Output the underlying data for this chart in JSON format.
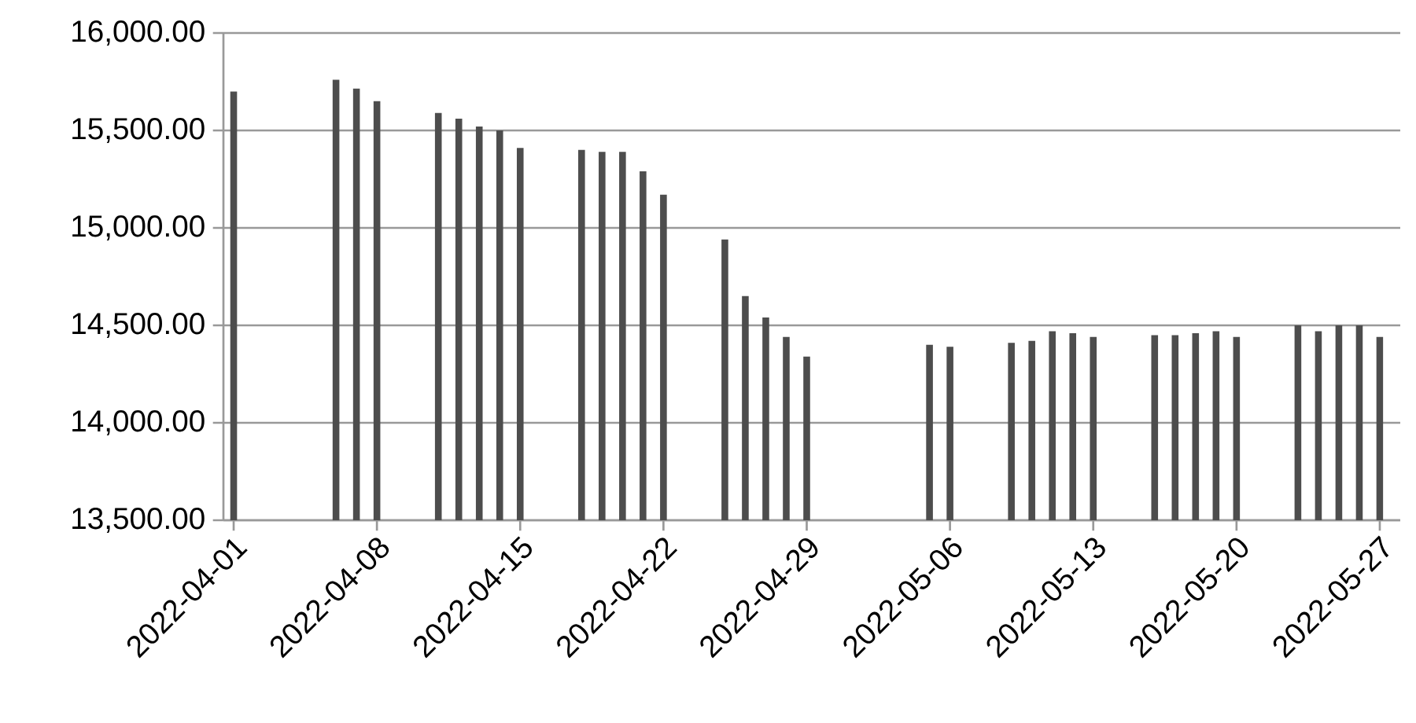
{
  "chart_data": {
    "type": "bar",
    "color": "#4d4d4d",
    "x": [
      "2022-04-01",
      "2022-04-06",
      "2022-04-07",
      "2022-04-08",
      "2022-04-11",
      "2022-04-12",
      "2022-04-13",
      "2022-04-14",
      "2022-04-15",
      "2022-04-18",
      "2022-04-19",
      "2022-04-20",
      "2022-04-21",
      "2022-04-22",
      "2022-04-25",
      "2022-04-26",
      "2022-04-27",
      "2022-04-28",
      "2022-04-29",
      "2022-05-05",
      "2022-05-06",
      "2022-05-09",
      "2022-05-10",
      "2022-05-11",
      "2022-05-12",
      "2022-05-13",
      "2022-05-16",
      "2022-05-17",
      "2022-05-18",
      "2022-05-19",
      "2022-05-20",
      "2022-05-23",
      "2022-05-24",
      "2022-05-25",
      "2022-05-26",
      "2022-05-27"
    ],
    "values": [
      15700,
      15760,
      15715,
      15650,
      15590,
      15560,
      15520,
      15500,
      15410,
      15400,
      15390,
      15390,
      15290,
      15170,
      14940,
      14650,
      14540,
      14440,
      14340,
      14400,
      14390,
      14410,
      14420,
      14470,
      14460,
      14440,
      14450,
      14450,
      14460,
      14470,
      14440,
      14500,
      14470,
      14500,
      14500,
      14440
    ],
    "xlim": [
      "2022-03-31T12:00",
      "2022-05-28"
    ],
    "xticks": [
      "2022-04-01",
      "2022-04-08",
      "2022-04-15",
      "2022-04-22",
      "2022-04-29",
      "2022-05-06",
      "2022-05-13",
      "2022-05-20",
      "2022-05-27"
    ],
    "ylim": [
      13500,
      16000
    ],
    "yticks": [
      {
        "value": 13500,
        "label": "13,500.00"
      },
      {
        "value": 14000,
        "label": "14,000.00"
      },
      {
        "value": 14500,
        "label": "14,500.00"
      },
      {
        "value": 15000,
        "label": "15,000.00"
      },
      {
        "value": 15500,
        "label": "15,500.00"
      },
      {
        "value": 16000,
        "label": "16,000.00"
      }
    ],
    "grid": "y"
  }
}
